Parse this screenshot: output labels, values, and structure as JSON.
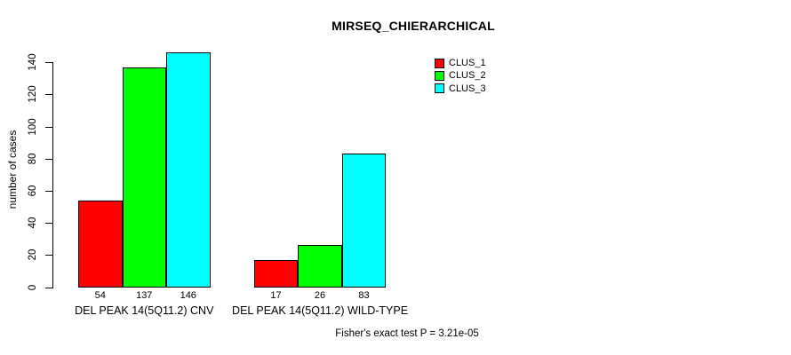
{
  "chart_data": {
    "type": "bar",
    "title": "MIRSEQ_CHIERARCHICAL",
    "ylabel": "number of cases",
    "xlabel": "",
    "ylim": [
      0,
      140
    ],
    "yticks": [
      0,
      20,
      40,
      60,
      80,
      100,
      120,
      140
    ],
    "grid": false,
    "legend_position": "top-right",
    "categories": [
      "DEL PEAK 14(5Q11.2) CNV",
      "DEL PEAK 14(5Q11.2) WILD-TYPE"
    ],
    "series": [
      {
        "name": "CLUS_1",
        "color": "#ff0000",
        "values": [
          54,
          17
        ]
      },
      {
        "name": "CLUS_2",
        "color": "#00ff00",
        "values": [
          137,
          26
        ]
      },
      {
        "name": "CLUS_3",
        "color": "#00ffff",
        "values": [
          146,
          83
        ]
      }
    ],
    "bar_value_labels": [
      [
        54,
        137,
        146
      ],
      [
        17,
        26,
        83
      ]
    ],
    "annotation": "Fisher's exact test P = 3.21e-05"
  },
  "colors": {
    "background": "#ffffff",
    "axis": "#000000",
    "text": "#000000"
  }
}
